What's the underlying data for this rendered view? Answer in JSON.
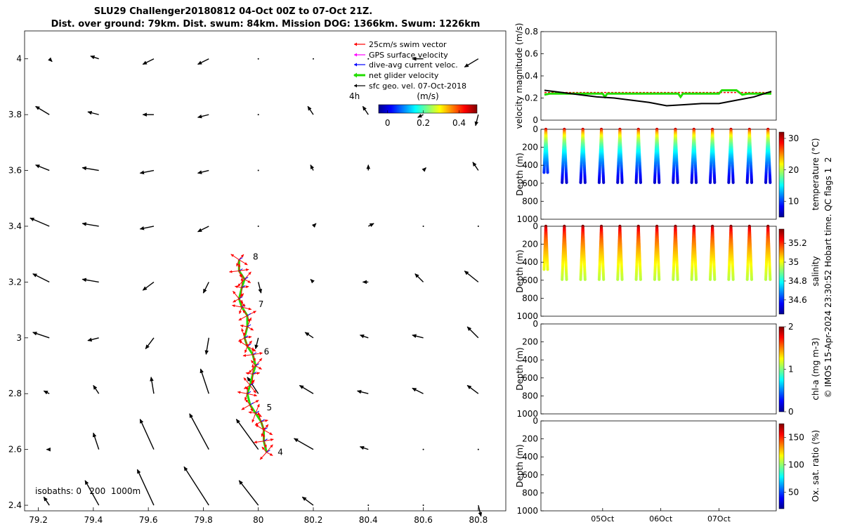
{
  "title": {
    "line1": "SLU29 Challenger20180812 04-Oct 00Z to 07-Oct 21Z.",
    "line2": "Dist. over ground: 79km. Dist. swum: 84km. Mission DOG: 1366km. Swum: 1226km"
  },
  "legend": {
    "items": [
      {
        "label": "25cm/s swim vector",
        "color": "#ff0000"
      },
      {
        "label": "GPS surface velocity",
        "color": "#ff00ff"
      },
      {
        "label": "dive-avg current veloc.",
        "color": "#0000ff"
      },
      {
        "label": "net glider velocity",
        "color": "#22dd00"
      },
      {
        "label": "sfc geo. vel. 07-Oct-2018",
        "color": "#000000"
      }
    ],
    "tag": "4h",
    "colorbar_label": "(m/s)",
    "colorbar_ticks": [
      {
        "v": 0,
        "t": "0"
      },
      {
        "v": 0.2,
        "t": "0.2"
      },
      {
        "v": 0.4,
        "t": "0.4"
      }
    ],
    "colorbar_range": [
      -0.05,
      0.5
    ]
  },
  "isobaths_label": "isobaths: 0   200  1000m",
  "footer": "© IMOS 15-Apr-2024 23:30:52 Hobart time. QC flags 1  2",
  "chart_data": [
    {
      "type": "scatter",
      "name": "map",
      "xlim": [
        79.15,
        80.9
      ],
      "ylim": [
        2.38,
        4.1
      ],
      "xticks": [
        "79.2",
        "79.4",
        "79.6",
        "79.8",
        "80",
        "80.2",
        "80.4",
        "80.6",
        "80.8"
      ],
      "yticks": [
        "2.4",
        "2.6",
        "2.8",
        "3",
        "3.2",
        "3.4",
        "3.6",
        "3.8",
        "4"
      ],
      "grid_x": [
        79.24,
        79.42,
        79.62,
        79.82,
        80.0,
        80.2,
        80.4,
        80.6,
        80.8
      ],
      "grid_y": [
        2.4,
        2.6,
        2.8,
        3.0,
        3.2,
        3.4,
        3.6,
        3.8,
        4.0
      ],
      "geo_vectors": [
        [
          [
            -0.02,
            0.03
          ],
          [
            -0.05,
            0.09
          ],
          [
            -0.06,
            0.13
          ],
          [
            -0.09,
            0.14
          ],
          [
            -0.07,
            0.09
          ],
          [
            -0.04,
            0.03
          ],
          [
            0,
            0
          ],
          [
            0,
            0
          ],
          [
            0.01,
            -0.04
          ]
        ],
        [
          [
            -0.01,
            0.0
          ],
          [
            -0.02,
            0.06
          ],
          [
            -0.05,
            0.11
          ],
          [
            -0.07,
            0.13
          ],
          [
            -0.08,
            0.11
          ],
          [
            -0.07,
            0.04
          ],
          [
            -0.03,
            0.01
          ],
          [
            0,
            0
          ],
          [
            0,
            0
          ]
        ],
        [
          [
            -0.02,
            0.01
          ],
          [
            -0.02,
            0.03
          ],
          [
            -0.01,
            0.06
          ],
          [
            -0.03,
            0.09
          ],
          [
            -0.04,
            0.06
          ],
          [
            -0.05,
            0.03
          ],
          [
            -0.04,
            0.01
          ],
          [
            -0.04,
            0.02
          ],
          [
            -0.04,
            0.03
          ]
        ],
        [
          [
            -0.06,
            0.02
          ],
          [
            -0.04,
            -0.01
          ],
          [
            -0.03,
            -0.04
          ],
          [
            -0.01,
            -0.06
          ],
          [
            -0.01,
            -0.04
          ],
          [
            -0.03,
            0.02
          ],
          [
            -0.03,
            0.01
          ],
          [
            -0.04,
            0.01
          ],
          [
            -0.04,
            0.04
          ]
        ],
        [
          [
            -0.06,
            0.03
          ],
          [
            -0.06,
            0.01
          ],
          [
            -0.04,
            -0.03
          ],
          [
            -0.02,
            -0.04
          ],
          [
            0.01,
            -0.04
          ],
          [
            -0.01,
            0.01
          ],
          [
            -0.02,
            0
          ],
          [
            -0.03,
            0.03
          ],
          [
            -0.05,
            0.04
          ]
        ],
        [
          [
            -0.07,
            0.03
          ],
          [
            -0.06,
            0.01
          ],
          [
            -0.05,
            -0.01
          ],
          [
            -0.04,
            -0.02
          ],
          [
            0,
            0
          ],
          [
            0.01,
            0.01
          ],
          [
            0.02,
            0.01
          ],
          [
            0,
            0
          ],
          [
            0,
            0
          ]
        ],
        [
          [
            -0.05,
            0.02
          ],
          [
            -0.06,
            0.01
          ],
          [
            -0.05,
            -0.01
          ],
          [
            -0.04,
            -0.01
          ],
          [
            0,
            0
          ],
          [
            -0.01,
            0.02
          ],
          [
            0,
            0.02
          ],
          [
            0.01,
            0.01
          ],
          [
            -0.02,
            0.03
          ]
        ],
        [
          [
            -0.05,
            0.03
          ],
          [
            -0.04,
            0.01
          ],
          [
            -0.04,
            0
          ],
          [
            -0.04,
            -0.01
          ],
          [
            0,
            0
          ],
          [
            -0.02,
            0.03
          ],
          [
            -0.02,
            0.03
          ],
          [
            -0.02,
            -0.01
          ],
          [
            -0.01,
            -0.04
          ]
        ],
        [
          [
            0.01,
            -0.01
          ],
          [
            -0.03,
            0.01
          ],
          [
            -0.04,
            -0.02
          ],
          [
            -0.04,
            -0.02
          ],
          [
            0,
            0
          ],
          [
            0,
            0
          ],
          [
            0,
            0
          ],
          [
            -0.04,
            0
          ],
          [
            -0.05,
            -0.03
          ]
        ]
      ],
      "track_labels": [
        {
          "t": "8",
          "x": 79.97,
          "y": 3.29
        },
        {
          "t": "7",
          "x": 79.99,
          "y": 3.12
        },
        {
          "t": "6",
          "x": 80.01,
          "y": 2.95
        },
        {
          "t": "5",
          "x": 80.02,
          "y": 2.75
        },
        {
          "t": "4",
          "x": 80.06,
          "y": 2.59
        }
      ],
      "track": [
        [
          80.03,
          2.59
        ],
        [
          80.02,
          2.63
        ],
        [
          80.02,
          2.67
        ],
        [
          80.01,
          2.7
        ],
        [
          79.99,
          2.73
        ],
        [
          79.97,
          2.76
        ],
        [
          79.96,
          2.8
        ],
        [
          79.97,
          2.83
        ],
        [
          79.98,
          2.87
        ],
        [
          79.99,
          2.9
        ],
        [
          79.98,
          2.94
        ],
        [
          79.96,
          2.97
        ],
        [
          79.95,
          3.0
        ],
        [
          79.96,
          3.04
        ],
        [
          79.96,
          3.08
        ],
        [
          79.94,
          3.11
        ],
        [
          79.93,
          3.14
        ],
        [
          79.94,
          3.18
        ],
        [
          79.95,
          3.21
        ],
        [
          79.93,
          3.24
        ],
        [
          79.93,
          3.28
        ]
      ]
    },
    {
      "type": "line",
      "name": "velocity",
      "ylabel": "velocity magnitude (m/s)",
      "ylim": [
        0,
        0.8
      ],
      "yticks": [
        "0",
        "0.2",
        "0.4",
        "0.6",
        "0.8"
      ],
      "xlim": [
        0,
        3.9
      ],
      "series": [
        {
          "color": "#ff0000",
          "x": [
            0,
            0.4,
            0.8,
            1.2,
            1.6,
            2.0,
            2.4,
            2.8,
            3.2,
            3.6,
            3.9
          ],
          "y": [
            0.25,
            0.25,
            0.25,
            0.25,
            0.25,
            0.25,
            0.25,
            0.25,
            0.25,
            0.25,
            0.25
          ]
        },
        {
          "color": "#22dd00",
          "x": [
            0,
            0.1,
            0.2,
            0.4,
            0.6,
            0.8,
            1.0,
            1.04,
            1.08,
            1.2,
            1.4,
            1.6,
            1.8,
            2.0,
            2.2,
            2.3,
            2.34,
            2.38,
            2.6,
            2.8,
            3.0,
            3.05,
            3.1,
            3.3,
            3.4,
            3.5,
            3.7,
            3.9
          ],
          "y": [
            0.23,
            0.24,
            0.24,
            0.24,
            0.24,
            0.24,
            0.24,
            0.21,
            0.24,
            0.24,
            0.24,
            0.24,
            0.24,
            0.24,
            0.24,
            0.24,
            0.21,
            0.24,
            0.24,
            0.24,
            0.24,
            0.27,
            0.27,
            0.27,
            0.23,
            0.24,
            0.24,
            0.24
          ]
        },
        {
          "color": "#000000",
          "x": [
            0,
            0.3,
            0.6,
            0.9,
            1.2,
            1.5,
            1.8,
            2.1,
            2.4,
            2.7,
            3.0,
            3.3,
            3.6,
            3.9
          ],
          "y": [
            0.27,
            0.25,
            0.23,
            0.21,
            0.2,
            0.18,
            0.16,
            0.13,
            0.14,
            0.15,
            0.15,
            0.18,
            0.21,
            0.26
          ]
        }
      ]
    },
    {
      "type": "scatter",
      "name": "temperature",
      "ylabel": "Depth (m)",
      "cbar_label": "temperature (°C)",
      "ylim": [
        0,
        1000
      ],
      "yticks": [
        "0",
        "200",
        "400",
        "600",
        "800",
        "1000"
      ],
      "cmin": 5,
      "cmax": 32,
      "cticks": [
        {
          "v": 10,
          "t": "10"
        },
        {
          "v": 20,
          "t": "20"
        },
        {
          "v": 30,
          "t": "30"
        }
      ],
      "surface": 30,
      "deep": 7,
      "max_depth": 600
    },
    {
      "type": "scatter",
      "name": "salinity",
      "ylabel": "Depth (m)",
      "cbar_label": "salinity",
      "ylim": [
        0,
        1000
      ],
      "yticks": [
        "0",
        "200",
        "400",
        "600",
        "800",
        "1000"
      ],
      "cmin": 34.45,
      "cmax": 35.35,
      "cticks": [
        {
          "v": 34.6,
          "t": "34.6"
        },
        {
          "v": 34.8,
          "t": "34.8"
        },
        {
          "v": 35,
          "t": "35"
        },
        {
          "v": 35.2,
          "t": "35.2"
        }
      ],
      "surface": 35.35,
      "deep": 34.95,
      "max_depth": 600
    },
    {
      "type": "scatter",
      "name": "chla",
      "ylabel": "Depth (m)",
      "cbar_label": "chl-a (mg m-3)",
      "ylim": [
        0,
        1000
      ],
      "yticks": [
        "0",
        "200",
        "400",
        "600",
        "800",
        "1000"
      ],
      "cmin": 0,
      "cmax": 2,
      "cticks": [
        {
          "v": 0,
          "t": "0"
        },
        {
          "v": 1,
          "t": "1"
        },
        {
          "v": 2,
          "t": "2"
        }
      ]
    },
    {
      "type": "scatter",
      "name": "oxygen",
      "ylabel": "Depth (m)",
      "cbar_label": "Ox. sat. ratio (%)",
      "ylim": [
        0,
        1000
      ],
      "yticks": [
        "0",
        "200",
        "400",
        "600",
        "800",
        "1000"
      ],
      "xticks": [
        {
          "v": 1,
          "t": "05Oct"
        },
        {
          "v": 2,
          "t": "06Oct"
        },
        {
          "v": 3,
          "t": "07Oct"
        }
      ],
      "cmin": 20,
      "cmax": 175,
      "cticks": [
        {
          "v": 50,
          "t": "50"
        },
        {
          "v": 100,
          "t": "100"
        },
        {
          "v": 150,
          "t": "150"
        }
      ]
    }
  ]
}
